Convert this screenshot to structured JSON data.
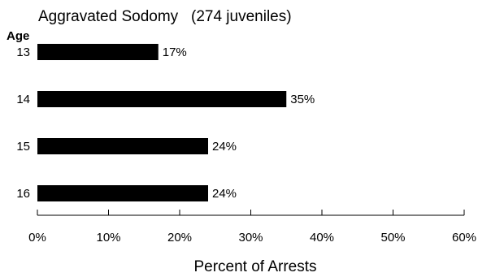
{
  "chart_data": {
    "type": "bar",
    "orientation": "horizontal",
    "title": "Aggravated Sodomy   (274 juveniles)",
    "category_axis_label": "Age",
    "xlabel": "Percent of Arrests",
    "ylabel": "Age",
    "categories": [
      "13",
      "14",
      "15",
      "16"
    ],
    "values": [
      17,
      35,
      24,
      24
    ],
    "data_labels": [
      "17%",
      "35%",
      "24%",
      "24%"
    ],
    "xlim": [
      0,
      60
    ],
    "x_ticks": [
      0,
      10,
      20,
      30,
      40,
      50,
      60
    ],
    "x_tick_labels": [
      "0%",
      "10%",
      "20%",
      "30%",
      "40%",
      "50%",
      "60%"
    ],
    "bar_color": "#000000",
    "grid": false,
    "legend": "none"
  }
}
